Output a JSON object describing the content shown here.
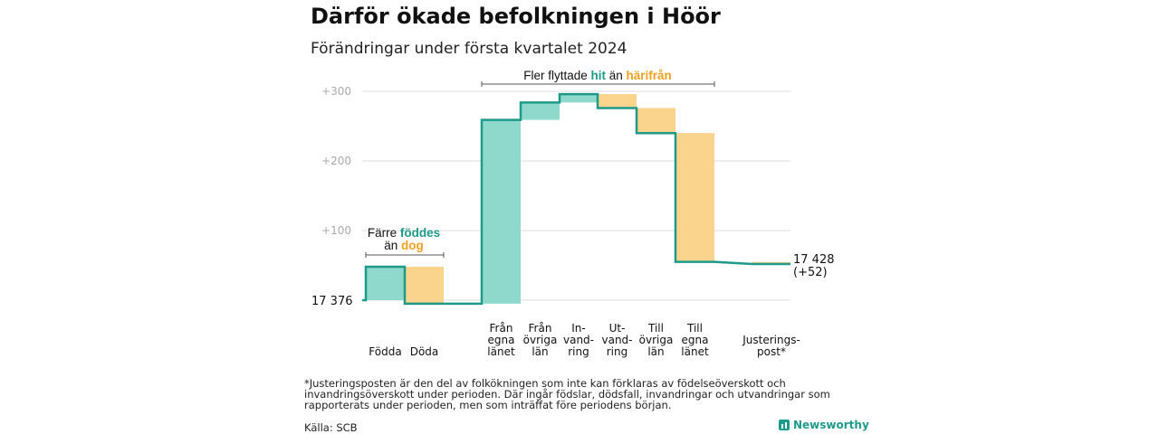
{
  "title": "Därför ökade befolkningen i Höör",
  "subtitle": "Förändringar under första kvartalet 2024",
  "footnote": "*Justeringsposten är den del av folkökningen som inte kan förklaras av födelseöverskott och invandringsöverskott under perioden. Där ingår födslar, dödsfall, invandringar och utvandringar som rapporterats under perioden, men som inträffat före periodens början.",
  "source": "Källa: SCB",
  "brand": "Newsworthy",
  "colors": {
    "increase": "#8fd8cc",
    "decrease": "#fad48c",
    "line": "#1e9a8a",
    "grid": "#dddddd",
    "teal_text": "#1e9a8a",
    "orange_text": "#f0a020"
  },
  "chart_data": {
    "type": "bar",
    "subtype": "waterfall",
    "start_label": "17  376",
    "end_label_1": "17 428",
    "end_label_2": "(+52)",
    "yticks": [
      "+100",
      "+200",
      "+300"
    ],
    "ylim": [
      0,
      300
    ],
    "grid": true,
    "categories": [
      {
        "name": "Födda",
        "lines": [
          "Födda"
        ],
        "delta": 48
      },
      {
        "name": "Döda",
        "lines": [
          "Döda"
        ],
        "delta": -53
      },
      {
        "name": "Från egna länet",
        "lines": [
          "Från",
          "egna",
          "länet"
        ],
        "delta": 264
      },
      {
        "name": "Från övriga län",
        "lines": [
          "Från",
          "övriga",
          "län"
        ],
        "delta": 25
      },
      {
        "name": "Invandring",
        "lines": [
          "In-",
          "vand-",
          "ring"
        ],
        "delta": 12
      },
      {
        "name": "Utvandring",
        "lines": [
          "Ut-",
          "vand-",
          "ring"
        ],
        "delta": -20
      },
      {
        "name": "Till övriga län",
        "lines": [
          "Till",
          "övriga",
          "län"
        ],
        "delta": -36
      },
      {
        "name": "Till egna länet",
        "lines": [
          "Till",
          "egna",
          "länet"
        ],
        "delta": -185
      },
      {
        "name": "Justeringspost*",
        "lines": [
          "Justerings-",
          "post*"
        ],
        "delta": -3
      }
    ],
    "annotations": [
      {
        "text_parts": [
          [
            "Färre ",
            "normal"
          ],
          [
            "föddes",
            "teal"
          ]
        ],
        "line2_parts": [
          [
            "än ",
            "normal"
          ],
          [
            "dog",
            "orange"
          ]
        ]
      },
      {
        "text_parts": [
          [
            "Fler flyttade ",
            "normal"
          ],
          [
            "hit",
            "teal"
          ],
          [
            "  än ",
            "normal"
          ],
          [
            "härifrån",
            "orange"
          ]
        ]
      }
    ]
  }
}
